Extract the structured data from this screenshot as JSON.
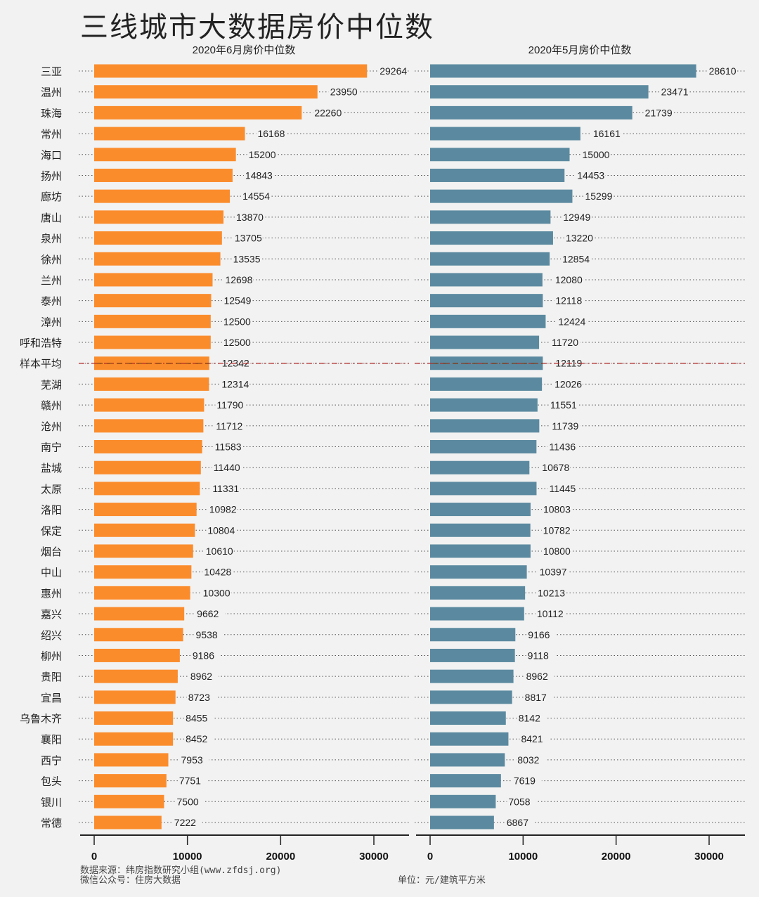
{
  "title": "三线城市大数据房价中位数",
  "footer": {
    "source": "数据来源：纬房指数研究小组(www.zfdsj.org)",
    "wechat": "微信公众号：住房大数据",
    "unit": "单位：元/建筑平方米"
  },
  "colors": {
    "june": "#fb8c2c",
    "may": "#5b8aa0",
    "average_line": "#b22222"
  },
  "chart_data": [
    {
      "type": "bar",
      "orientation": "horizontal",
      "title": "2020年6月房价中位数",
      "xlim": [
        0,
        33000
      ],
      "xticks": [
        0,
        10000,
        20000,
        30000
      ],
      "categories": [
        "三亚",
        "温州",
        "珠海",
        "常州",
        "海口",
        "扬州",
        "廊坊",
        "唐山",
        "泉州",
        "徐州",
        "兰州",
        "泰州",
        "漳州",
        "呼和浩特",
        "样本平均",
        "芜湖",
        "赣州",
        "沧州",
        "南宁",
        "盐城",
        "太原",
        "洛阳",
        "保定",
        "烟台",
        "中山",
        "惠州",
        "嘉兴",
        "绍兴",
        "柳州",
        "贵阳",
        "宜昌",
        "乌鲁木齐",
        "襄阳",
        "西宁",
        "包头",
        "银川",
        "常德"
      ],
      "values": [
        29264,
        23950,
        22260,
        16168,
        15200,
        14843,
        14554,
        13870,
        13705,
        13535,
        12698,
        12549,
        12500,
        12500,
        12342,
        12314,
        11790,
        11712,
        11583,
        11440,
        11331,
        10982,
        10804,
        10610,
        10428,
        10300,
        9662,
        9538,
        9186,
        8962,
        8723,
        8455,
        8452,
        7953,
        7751,
        7500,
        7222
      ],
      "average_category": "样本平均"
    },
    {
      "type": "bar",
      "orientation": "horizontal",
      "title": "2020年5月房价中位数",
      "xlim": [
        0,
        33000
      ],
      "xticks": [
        0,
        10000,
        20000,
        30000
      ],
      "values": [
        28610,
        23471,
        21739,
        16161,
        15000,
        14453,
        15299,
        12949,
        13220,
        12854,
        12080,
        12118,
        12424,
        11720,
        12119,
        12026,
        11551,
        11739,
        11436,
        10678,
        11445,
        10803,
        10782,
        10800,
        10397,
        10213,
        10112,
        9166,
        9118,
        8962,
        8817,
        8142,
        8421,
        8032,
        7619,
        7058,
        6867
      ],
      "average_category": "样本平均"
    }
  ]
}
